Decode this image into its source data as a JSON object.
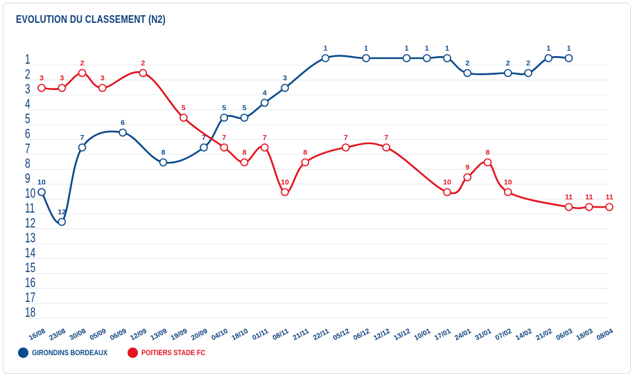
{
  "chart_data": {
    "type": "line",
    "title": "EVOLUTION DU CLASSEMENT (N2)",
    "xlabel": "",
    "ylabel": "",
    "ylim": [
      1,
      18
    ],
    "y_inverted": true,
    "yticks": [
      1,
      2,
      3,
      4,
      5,
      6,
      7,
      8,
      9,
      10,
      11,
      12,
      13,
      14,
      15,
      16,
      17,
      18
    ],
    "categories": [
      "16/08",
      "23/08",
      "30/08",
      "05/09",
      "06/09",
      "12/09",
      "13/09",
      "19/09",
      "20/09",
      "04/10",
      "18/10",
      "01/11",
      "08/11",
      "21/11",
      "22/11",
      "05/12",
      "06/12",
      "12/12",
      "13/12",
      "10/01",
      "17/01",
      "24/01",
      "31/01",
      "07/02",
      "14/02",
      "21/02",
      "06/03",
      "18/03",
      "08/04"
    ],
    "series": [
      {
        "name": "GIRONDINS BORDEAUX",
        "color": "#0b4a8b",
        "values": [
          10,
          12,
          7,
          null,
          6,
          null,
          8,
          null,
          7,
          5,
          5,
          4,
          3,
          null,
          1,
          null,
          1,
          null,
          1,
          1,
          1,
          2,
          null,
          2,
          2,
          1,
          1,
          null,
          null
        ]
      },
      {
        "name": "POITIERS STADE FC",
        "color": "#e3141f",
        "values": [
          3,
          3,
          2,
          3,
          null,
          2,
          null,
          5,
          null,
          7,
          8,
          7,
          10,
          8,
          null,
          7,
          null,
          7,
          null,
          null,
          10,
          9,
          8,
          10,
          null,
          null,
          11,
          11,
          11
        ]
      }
    ],
    "legend": "bottom-left"
  }
}
